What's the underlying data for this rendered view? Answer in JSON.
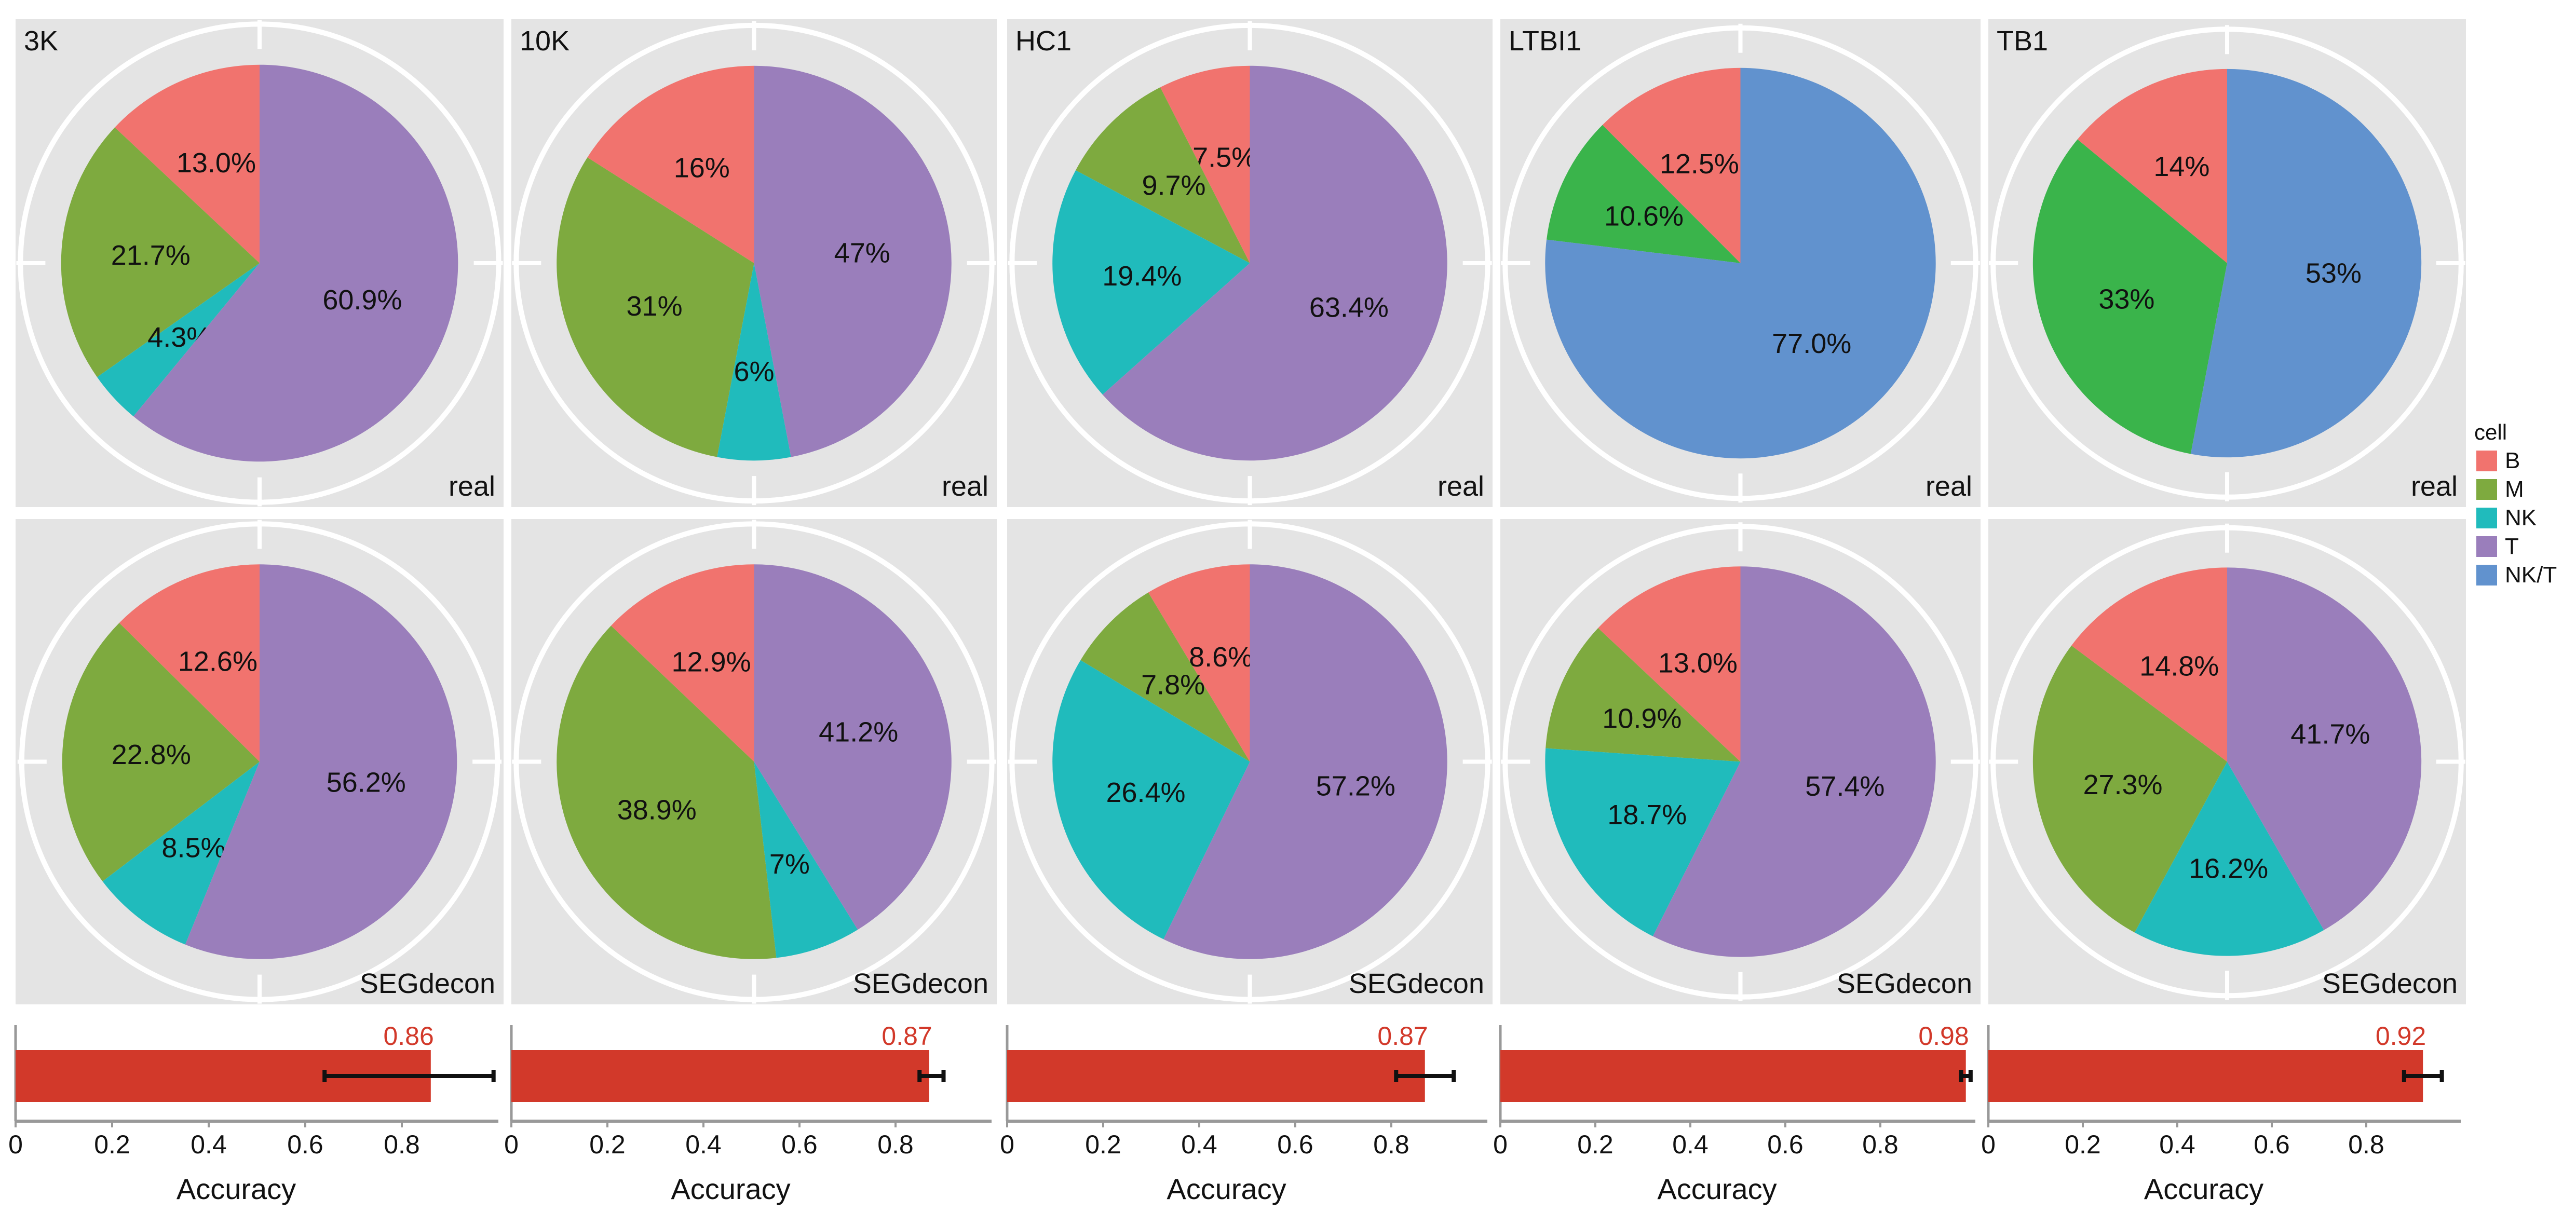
{
  "legend": {
    "title": "cell",
    "items": [
      {
        "label": "B",
        "color": "#F1736E"
      },
      {
        "label": "M",
        "color": "#7EAA3F"
      },
      {
        "label": "NK",
        "color": "#20BBBC"
      },
      {
        "label": "T",
        "color": "#9A7EBB"
      },
      {
        "label": "NK/T",
        "color": "#6192CE"
      }
    ]
  },
  "chart_data": [
    {
      "type": "pie",
      "title": "3K",
      "label": "real",
      "slices": [
        {
          "cell": "B",
          "value": 13.0,
          "text": "13.0%"
        },
        {
          "cell": "M",
          "value": 21.7,
          "text": "21.7%"
        },
        {
          "cell": "NK",
          "value": 4.3,
          "text": "4.3%"
        },
        {
          "cell": "T",
          "value": 60.9,
          "text": "60.9%"
        }
      ]
    },
    {
      "type": "pie",
      "title": "10K",
      "label": "real",
      "slices": [
        {
          "cell": "B",
          "value": 16,
          "text": "16%"
        },
        {
          "cell": "M",
          "value": 31,
          "text": "31%"
        },
        {
          "cell": "NK",
          "value": 6,
          "text": "6%"
        },
        {
          "cell": "T",
          "value": 47,
          "text": "47%"
        }
      ]
    },
    {
      "type": "pie",
      "title": "HC1",
      "label": "real",
      "slices": [
        {
          "cell": "B",
          "value": 7.5,
          "text": "7.5%"
        },
        {
          "cell": "M",
          "value": 9.7,
          "text": "9.7%"
        },
        {
          "cell": "NK",
          "value": 19.4,
          "text": "19.4%"
        },
        {
          "cell": "T",
          "value": 63.4,
          "text": "63.4%"
        }
      ]
    },
    {
      "type": "pie",
      "title": "LTBI1",
      "label": "real",
      "slices": [
        {
          "cell": "B",
          "value": 12.5,
          "text": "12.5%"
        },
        {
          "cell": "M",
          "value": 10.6,
          "text": "10.6%",
          "color": "#3AB44B"
        },
        {
          "cell": "NK/T",
          "value": 77.0,
          "text": "77.0%"
        }
      ]
    },
    {
      "type": "pie",
      "title": "TB1",
      "label": "real",
      "slices": [
        {
          "cell": "B",
          "value": 14,
          "text": "14%"
        },
        {
          "cell": "M",
          "value": 33,
          "text": "33%",
          "color": "#3AB44B"
        },
        {
          "cell": "NK/T",
          "value": 53,
          "text": "53%"
        }
      ]
    },
    {
      "type": "pie",
      "title": "",
      "label": "SEGdecon",
      "slices": [
        {
          "cell": "B",
          "value": 12.6,
          "text": "12.6%"
        },
        {
          "cell": "M",
          "value": 22.8,
          "text": "22.8%"
        },
        {
          "cell": "NK",
          "value": 8.5,
          "text": "8.5%"
        },
        {
          "cell": "T",
          "value": 56.2,
          "text": "56.2%"
        }
      ]
    },
    {
      "type": "pie",
      "title": "",
      "label": "SEGdecon",
      "slices": [
        {
          "cell": "B",
          "value": 12.9,
          "text": "12.9%"
        },
        {
          "cell": "M",
          "value": 38.9,
          "text": "38.9%"
        },
        {
          "cell": "NK",
          "value": 7,
          "text": "7%"
        },
        {
          "cell": "T",
          "value": 41.2,
          "text": "41.2%"
        }
      ]
    },
    {
      "type": "pie",
      "title": "",
      "label": "SEGdecon",
      "slices": [
        {
          "cell": "B",
          "value": 8.6,
          "text": "8.6%"
        },
        {
          "cell": "M",
          "value": 7.8,
          "text": "7.8%"
        },
        {
          "cell": "NK",
          "value": 26.4,
          "text": "26.4%"
        },
        {
          "cell": "T",
          "value": 57.2,
          "text": "57.2%"
        }
      ]
    },
    {
      "type": "pie",
      "title": "",
      "label": "SEGdecon",
      "slices": [
        {
          "cell": "B",
          "value": 13.0,
          "text": "13.0%"
        },
        {
          "cell": "M",
          "value": 10.9,
          "text": "10.9%"
        },
        {
          "cell": "NK",
          "value": 18.7,
          "text": "18.7%"
        },
        {
          "cell": "T",
          "value": 57.4,
          "text": "57.4%"
        }
      ]
    },
    {
      "type": "pie",
      "title": "",
      "label": "SEGdecon",
      "slices": [
        {
          "cell": "B",
          "value": 14.8,
          "text": "14.8%"
        },
        {
          "cell": "M",
          "value": 27.3,
          "text": "27.3%"
        },
        {
          "cell": "NK",
          "value": 16.2,
          "text": "16.2%"
        },
        {
          "cell": "T",
          "value": 41.7,
          "text": "41.7%"
        }
      ]
    },
    {
      "type": "bar",
      "xlabel": "Accuracy",
      "value": 0.86,
      "value_text": "0.86",
      "error": [
        0.64,
        0.99
      ],
      "xticks": [
        "0",
        "0.2",
        "0.4",
        "0.6",
        "0.8"
      ],
      "xlim": [
        0,
        1.0
      ]
    },
    {
      "type": "bar",
      "xlabel": "Accuracy",
      "value": 0.87,
      "value_text": "0.87",
      "error": [
        0.85,
        0.9
      ],
      "xticks": [
        "0",
        "0.2",
        "0.4",
        "0.6",
        "0.8"
      ],
      "xlim": [
        0,
        1.0
      ]
    },
    {
      "type": "bar",
      "xlabel": "Accuracy",
      "value": 0.87,
      "value_text": "0.87",
      "error": [
        0.81,
        0.93
      ],
      "xticks": [
        "0",
        "0.2",
        "0.4",
        "0.6",
        "0.8"
      ],
      "xlim": [
        0,
        1.0
      ]
    },
    {
      "type": "bar",
      "xlabel": "Accuracy",
      "value": 0.98,
      "value_text": "0.98",
      "error": [
        0.97,
        0.99
      ],
      "xticks": [
        "0",
        "0.2",
        "0.4",
        "0.6",
        "0.8"
      ],
      "xlim": [
        0,
        1.0
      ]
    },
    {
      "type": "bar",
      "xlabel": "Accuracy",
      "value": 0.92,
      "value_text": "0.92",
      "error": [
        0.88,
        0.96
      ],
      "xticks": [
        "0",
        "0.2",
        "0.4",
        "0.6",
        "0.8"
      ],
      "xlim": [
        0,
        1.0
      ]
    }
  ]
}
